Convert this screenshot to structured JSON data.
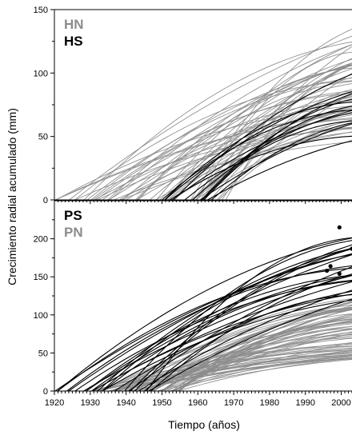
{
  "chart_data": {
    "type": "line",
    "xlabel": "Tiempo (años)",
    "ylabel": "Crecimiento radial acumulado (mm)",
    "xlim": [
      1920,
      2003
    ],
    "xticks": [
      1920,
      1930,
      1940,
      1950,
      1960,
      1970,
      1980,
      1990,
      2000
    ],
    "colors": {
      "gray": "#8c8c8c",
      "black": "#000000"
    },
    "panels": [
      {
        "ylim": [
          0,
          150
        ],
        "yticks": [
          0,
          50,
          100,
          150
        ],
        "legend": [
          {
            "label": "HN",
            "color": "#8c8c8c"
          },
          {
            "label": "HS",
            "color": "#000000"
          }
        ],
        "series_groups": [
          {
            "name": "HN",
            "color": "#8c8c8c",
            "count": 55,
            "start_range": [
              1920,
              1968
            ],
            "end_value_range": [
              45,
              135
            ],
            "end_year": 2003
          },
          {
            "name": "HS",
            "color": "#000000",
            "count": 14,
            "start_range": [
              1945,
              1968
            ],
            "end_value_range": [
              45,
              100
            ],
            "end_year": 2003
          }
        ]
      },
      {
        "ylim": [
          0,
          250
        ],
        "yticks": [
          0,
          50,
          100,
          150,
          200
        ],
        "legend": [
          {
            "label": "PS",
            "color": "#000000"
          },
          {
            "label": "PN",
            "color": "#8c8c8c"
          }
        ],
        "series_groups": [
          {
            "name": "PN",
            "color": "#8c8c8c",
            "count": 70,
            "start_range": [
              1930,
              1955
            ],
            "end_value_range": [
              40,
              125
            ],
            "end_year": 2003
          },
          {
            "name": "PS",
            "color": "#000000",
            "count": 26,
            "start_range": [
              1920,
              1948
            ],
            "end_value_range": [
              105,
              205
            ],
            "end_year": 2003
          }
        ],
        "endpoints": [
          {
            "x": 1999.5,
            "y": 215
          },
          {
            "x": 2003,
            "y": 187
          },
          {
            "x": 1997,
            "y": 164
          },
          {
            "x": 1996,
            "y": 158
          },
          {
            "x": 1999.5,
            "y": 154
          }
        ]
      }
    ]
  }
}
